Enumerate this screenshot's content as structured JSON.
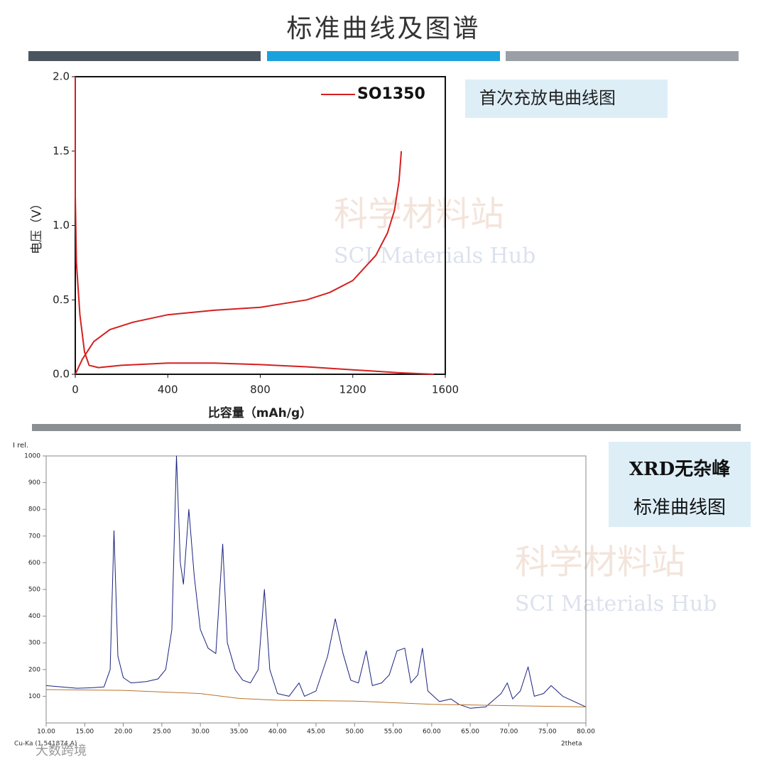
{
  "title": "标准曲线及图谱",
  "callouts": [
    [
      "首次充放电曲线图"
    ],
    [
      "XRD无杂峰",
      "标准曲线图"
    ]
  ],
  "watermarks": [
    "科学材料站",
    "SCI Materials Hub"
  ],
  "footer": "大数跨境",
  "chart_data": [
    {
      "type": "line",
      "x_label": "比容量（mAh/g）",
      "y_label": "电压（V）",
      "xlim": [
        0,
        1600
      ],
      "xticks": [
        0,
        400,
        800,
        1200,
        1600
      ],
      "ylim": [
        0,
        2.0
      ],
      "yticks": [
        {
          "value": 0,
          "label": "0.0"
        },
        {
          "value": 0.5,
          "label": "0.5"
        },
        {
          "value": 1.0,
          "label": "1.0"
        },
        {
          "value": 1.5,
          "label": "1.5"
        },
        {
          "value": 2.0,
          "label": "2.0"
        }
      ],
      "series": [
        {
          "name": "SO1350",
          "color": "#d42020",
          "x": [
            0,
            0,
            5,
            20,
            40,
            60,
            100,
            200,
            400,
            600,
            800,
            1000,
            1200,
            1400,
            1550,
            null,
            0,
            30,
            80,
            150,
            250,
            400,
            600,
            800,
            1000,
            1100,
            1200,
            1300,
            1350,
            1380,
            1400,
            1410
          ],
          "values": [
            2.0,
            1.2,
            0.75,
            0.4,
            0.15,
            0.06,
            0.045,
            0.06,
            0.075,
            0.075,
            0.065,
            0.05,
            0.03,
            0.01,
            0.0,
            null,
            0.0,
            0.1,
            0.22,
            0.3,
            0.35,
            0.4,
            0.43,
            0.45,
            0.5,
            0.55,
            0.63,
            0.8,
            0.95,
            1.1,
            1.3,
            1.5
          ]
        }
      ]
    },
    {
      "type": "line",
      "x_label": "2theta",
      "y_label": "I rel.",
      "annotation": "Cu-Ka (1.541874 A)",
      "xlim": [
        10,
        80
      ],
      "xticks": [
        {
          "value": 10,
          "label": "10.00"
        },
        {
          "value": 15,
          "label": "15.00"
        },
        {
          "value": 20,
          "label": "20.00"
        },
        {
          "value": 25,
          "label": "25.00"
        },
        {
          "value": 30,
          "label": "30.00"
        },
        {
          "value": 35,
          "label": "35.00"
        },
        {
          "value": 40,
          "label": "40.00"
        },
        {
          "value": 45,
          "label": "45.00"
        },
        {
          "value": 50,
          "label": "50.00"
        },
        {
          "value": 55,
          "label": "55.00"
        },
        {
          "value": 60,
          "label": "60.00"
        },
        {
          "value": 65,
          "label": "65.00"
        },
        {
          "value": 70,
          "label": "70.00"
        },
        {
          "value": 75,
          "label": "75.00"
        },
        {
          "value": 80,
          "label": "80.00"
        }
      ],
      "ylim": [
        0,
        1000
      ],
      "yticks": [
        100,
        200,
        300,
        400,
        500,
        600,
        700,
        800,
        900,
        1000
      ],
      "series": [
        {
          "color": "#1a237e",
          "x": [
            10,
            12,
            14,
            16,
            17.5,
            18.3,
            18.8,
            19.3,
            20,
            21,
            23,
            24.5,
            25.5,
            26.3,
            26.9,
            27.4,
            27.8,
            28.5,
            29.2,
            30,
            31,
            32,
            32.9,
            33.5,
            34.5,
            35.5,
            36.5,
            37.5,
            38.3,
            39,
            40,
            41.5,
            42.8,
            43.5,
            45,
            46.5,
            47.5,
            48.5,
            49.5,
            50.5,
            51.5,
            52.3,
            53.5,
            54.5,
            55.5,
            56.5,
            57.3,
            58.2,
            58.8,
            59.5,
            61,
            62.5,
            63.5,
            65,
            67,
            69,
            69.8,
            70.5,
            71.5,
            72.5,
            73.3,
            74.5,
            75.5,
            77,
            78.5,
            80
          ],
          "values": [
            140,
            135,
            130,
            132,
            135,
            200,
            720,
            250,
            170,
            150,
            155,
            165,
            200,
            350,
            1000,
            600,
            520,
            800,
            550,
            350,
            280,
            260,
            670,
            300,
            200,
            160,
            150,
            200,
            500,
            200,
            110,
            100,
            150,
            100,
            120,
            250,
            390,
            260,
            160,
            150,
            270,
            140,
            150,
            180,
            270,
            280,
            150,
            180,
            280,
            120,
            80,
            90,
            70,
            55,
            60,
            110,
            150,
            90,
            120,
            210,
            100,
            110,
            140,
            100,
            80,
            60
          ]
        },
        {
          "color": "#b8742a",
          "x": [
            10,
            20,
            30,
            35,
            40,
            50,
            60,
            70,
            80
          ],
          "values": [
            125,
            122,
            110,
            92,
            85,
            82,
            70,
            65,
            60
          ]
        }
      ]
    }
  ]
}
